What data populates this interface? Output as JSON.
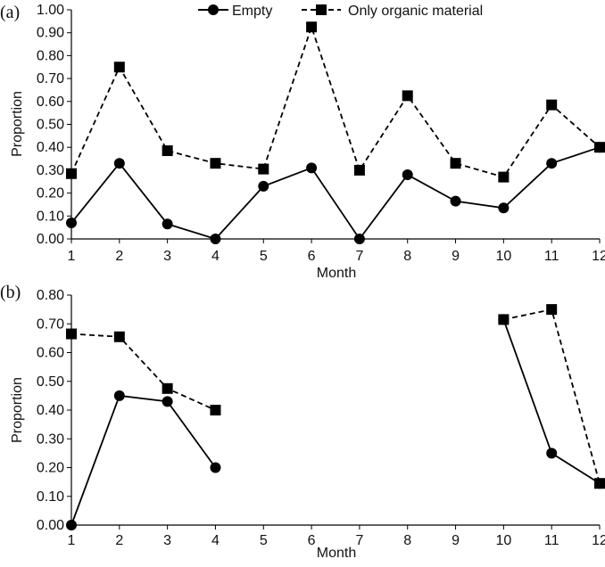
{
  "legend": {
    "entries": [
      {
        "label": "Empty",
        "marker": "circle",
        "line": "solid"
      },
      {
        "label": "Only organic material",
        "marker": "square",
        "line": "dashed"
      }
    ]
  },
  "chart_data": [
    {
      "type": "line",
      "panel_label": "(a)",
      "xlabel": "Month",
      "ylabel": "Proportion",
      "categories": [
        "1",
        "2",
        "3",
        "4",
        "5",
        "6",
        "7",
        "8",
        "9",
        "10",
        "11",
        "12"
      ],
      "ylim": [
        0,
        1.0
      ],
      "yticks": [
        "0.00",
        "0.10",
        "0.20",
        "0.30",
        "0.40",
        "0.50",
        "0.60",
        "0.70",
        "0.80",
        "0.90",
        "1.00"
      ],
      "grid": false,
      "legend_position": "top",
      "series": [
        {
          "name": "Empty",
          "marker": "circle",
          "line": "solid",
          "values": [
            0.07,
            0.33,
            0.065,
            0.0,
            0.23,
            0.31,
            0.0,
            0.28,
            0.165,
            0.135,
            0.33,
            0.4
          ]
        },
        {
          "name": "Only organic material",
          "marker": "square",
          "line": "dashed",
          "values": [
            0.285,
            0.75,
            0.385,
            0.33,
            0.305,
            0.925,
            0.3,
            0.625,
            0.33,
            0.27,
            0.585,
            0.4
          ]
        }
      ]
    },
    {
      "type": "line",
      "panel_label": "(b)",
      "xlabel": "Month",
      "ylabel": "Proportion",
      "categories": [
        "1",
        "2",
        "3",
        "4",
        "5",
        "6",
        "7",
        "8",
        "9",
        "10",
        "11",
        "12"
      ],
      "ylim": [
        0,
        0.8
      ],
      "yticks": [
        "0.00",
        "0.10",
        "0.20",
        "0.30",
        "0.40",
        "0.50",
        "0.60",
        "0.70",
        "0.80"
      ],
      "grid": false,
      "series": [
        {
          "name": "Empty",
          "marker": "circle",
          "line": "solid",
          "values": [
            0.0,
            0.45,
            0.43,
            0.2,
            null,
            null,
            null,
            null,
            null,
            0.715,
            0.25,
            0.145
          ]
        },
        {
          "name": "Only organic material",
          "marker": "square",
          "line": "dashed",
          "values": [
            0.665,
            0.655,
            0.475,
            0.4,
            null,
            null,
            null,
            null,
            null,
            0.715,
            0.75,
            0.145
          ]
        }
      ]
    }
  ]
}
